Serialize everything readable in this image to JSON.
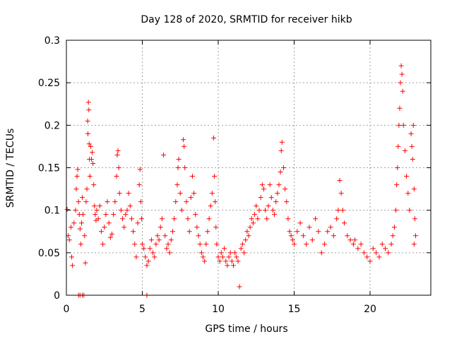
{
  "chart_data": {
    "type": "scatter",
    "title": "Day 128 of 2020, SRMTID for receiver hikb",
    "xlabel": "GPS time / hours",
    "ylabel": "SRMTID / TECUs",
    "xlim": [
      0,
      24
    ],
    "ylim": [
      0,
      0.3
    ],
    "xticks": [
      0,
      5,
      10,
      15,
      20
    ],
    "xtick_labels": [
      "0",
      "5",
      "10",
      "15",
      "20"
    ],
    "yticks": [
      0,
      0.05,
      0.1,
      0.15,
      0.2,
      0.25,
      0.3
    ],
    "ytick_labels": [
      "0",
      "0.05",
      "0.1",
      "0.15",
      "0.2",
      "0.25",
      "0.3"
    ],
    "grid": true,
    "marker": "plus",
    "series": [
      {
        "name": "SRMTID",
        "color": "#ff0000",
        "points": [
          [
            0.05,
            0.101
          ],
          [
            0.12,
            0.07
          ],
          [
            0.2,
            0.065
          ],
          [
            0.3,
            0.08
          ],
          [
            0.35,
            0.045
          ],
          [
            0.4,
            0.035
          ],
          [
            0.5,
            0.085
          ],
          [
            0.6,
            0.1
          ],
          [
            0.65,
            0.125
          ],
          [
            0.7,
            0.14
          ],
          [
            0.75,
            0.148
          ],
          [
            0.8,
            0.11
          ],
          [
            0.85,
            0.095
          ],
          [
            0.9,
            0.078
          ],
          [
            0.95,
            0.06
          ],
          [
            0.8,
            0.0
          ],
          [
            0.9,
            0.0
          ],
          [
            1.05,
            0.0
          ],
          [
            1.15,
            0.0
          ],
          [
            1.0,
            0.085
          ],
          [
            1.05,
            0.115
          ],
          [
            1.1,
            0.095
          ],
          [
            1.2,
            0.07
          ],
          [
            1.25,
            0.038
          ],
          [
            1.3,
            0.11
          ],
          [
            1.35,
            0.125
          ],
          [
            1.4,
            0.205
          ],
          [
            1.42,
            0.19
          ],
          [
            1.45,
            0.227
          ],
          [
            1.48,
            0.218
          ],
          [
            1.5,
            0.178
          ],
          [
            1.52,
            0.16
          ],
          [
            1.55,
            0.14
          ],
          [
            1.6,
            0.175
          ],
          [
            1.65,
            0.16
          ],
          [
            1.7,
            0.168
          ],
          [
            1.75,
            0.155
          ],
          [
            1.8,
            0.13
          ],
          [
            1.85,
            0.105
          ],
          [
            1.9,
            0.095
          ],
          [
            1.95,
            0.088
          ],
          [
            2.0,
            0.1
          ],
          [
            2.1,
            0.09
          ],
          [
            2.2,
            0.105
          ],
          [
            2.3,
            0.075
          ],
          [
            2.4,
            0.06
          ],
          [
            2.5,
            0.08
          ],
          [
            2.6,
            0.095
          ],
          [
            2.7,
            0.11
          ],
          [
            2.8,
            0.085
          ],
          [
            2.9,
            0.068
          ],
          [
            3.0,
            0.072
          ],
          [
            3.1,
            0.095
          ],
          [
            3.2,
            0.11
          ],
          [
            3.3,
            0.14
          ],
          [
            3.35,
            0.165
          ],
          [
            3.4,
            0.17
          ],
          [
            3.45,
            0.15
          ],
          [
            3.5,
            0.12
          ],
          [
            3.6,
            0.1
          ],
          [
            3.7,
            0.09
          ],
          [
            3.8,
            0.08
          ],
          [
            3.9,
            0.095
          ],
          [
            4.0,
            0.1
          ],
          [
            4.1,
            0.12
          ],
          [
            4.2,
            0.105
          ],
          [
            4.3,
            0.09
          ],
          [
            4.4,
            0.075
          ],
          [
            4.5,
            0.06
          ],
          [
            4.6,
            0.045
          ],
          [
            4.7,
            0.085
          ],
          [
            4.8,
            0.13
          ],
          [
            4.85,
            0.148
          ],
          [
            4.9,
            0.11
          ],
          [
            4.95,
            0.09
          ],
          [
            5.0,
            0.06
          ],
          [
            5.1,
            0.055
          ],
          [
            5.2,
            0.045
          ],
          [
            5.3,
            0.035
          ],
          [
            5.3,
            0.0
          ],
          [
            5.4,
            0.04
          ],
          [
            5.5,
            0.055
          ],
          [
            5.6,
            0.065
          ],
          [
            5.7,
            0.05
          ],
          [
            5.8,
            0.045
          ],
          [
            5.9,
            0.06
          ],
          [
            6.0,
            0.07
          ],
          [
            6.1,
            0.065
          ],
          [
            6.2,
            0.08
          ],
          [
            6.3,
            0.09
          ],
          [
            6.4,
            0.165
          ],
          [
            6.5,
            0.07
          ],
          [
            6.6,
            0.055
          ],
          [
            6.7,
            0.06
          ],
          [
            6.8,
            0.05
          ],
          [
            6.9,
            0.065
          ],
          [
            7.0,
            0.075
          ],
          [
            7.1,
            0.09
          ],
          [
            7.2,
            0.11
          ],
          [
            7.3,
            0.13
          ],
          [
            7.35,
            0.15
          ],
          [
            7.4,
            0.16
          ],
          [
            7.5,
            0.12
          ],
          [
            7.6,
            0.1
          ],
          [
            7.7,
            0.183
          ],
          [
            7.75,
            0.175
          ],
          [
            7.8,
            0.15
          ],
          [
            7.9,
            0.11
          ],
          [
            8.0,
            0.09
          ],
          [
            8.1,
            0.075
          ],
          [
            8.2,
            0.115
          ],
          [
            8.3,
            0.14
          ],
          [
            8.4,
            0.12
          ],
          [
            8.5,
            0.095
          ],
          [
            8.6,
            0.08
          ],
          [
            8.7,
            0.07
          ],
          [
            8.8,
            0.06
          ],
          [
            8.9,
            0.05
          ],
          [
            9.0,
            0.045
          ],
          [
            9.1,
            0.04
          ],
          [
            9.2,
            0.06
          ],
          [
            9.3,
            0.075
          ],
          [
            9.4,
            0.09
          ],
          [
            9.5,
            0.105
          ],
          [
            9.6,
            0.12
          ],
          [
            9.7,
            0.185
          ],
          [
            9.75,
            0.14
          ],
          [
            9.8,
            0.11
          ],
          [
            9.85,
            0.08
          ],
          [
            9.9,
            0.06
          ],
          [
            10.0,
            0.045
          ],
          [
            10.1,
            0.04
          ],
          [
            10.2,
            0.05
          ],
          [
            10.3,
            0.045
          ],
          [
            10.4,
            0.055
          ],
          [
            10.5,
            0.04
          ],
          [
            10.6,
            0.035
          ],
          [
            10.7,
            0.045
          ],
          [
            10.8,
            0.05
          ],
          [
            10.9,
            0.04
          ],
          [
            11.0,
            0.035
          ],
          [
            11.1,
            0.05
          ],
          [
            11.2,
            0.045
          ],
          [
            11.3,
            0.04
          ],
          [
            11.4,
            0.01
          ],
          [
            11.5,
            0.055
          ],
          [
            11.6,
            0.06
          ],
          [
            11.7,
            0.05
          ],
          [
            11.8,
            0.065
          ],
          [
            11.9,
            0.075
          ],
          [
            12.0,
            0.07
          ],
          [
            12.1,
            0.08
          ],
          [
            12.2,
            0.09
          ],
          [
            12.3,
            0.085
          ],
          [
            12.4,
            0.095
          ],
          [
            12.5,
            0.105
          ],
          [
            12.6,
            0.09
          ],
          [
            12.7,
            0.1
          ],
          [
            12.8,
            0.115
          ],
          [
            12.9,
            0.13
          ],
          [
            13.0,
            0.125
          ],
          [
            13.1,
            0.1
          ],
          [
            13.2,
            0.09
          ],
          [
            13.3,
            0.105
          ],
          [
            13.4,
            0.13
          ],
          [
            13.5,
            0.115
          ],
          [
            13.6,
            0.1
          ],
          [
            13.7,
            0.095
          ],
          [
            13.8,
            0.11
          ],
          [
            13.9,
            0.12
          ],
          [
            14.0,
            0.13
          ],
          [
            14.1,
            0.145
          ],
          [
            14.15,
            0.17
          ],
          [
            14.2,
            0.18
          ],
          [
            14.3,
            0.15
          ],
          [
            14.4,
            0.125
          ],
          [
            14.5,
            0.11
          ],
          [
            14.6,
            0.09
          ],
          [
            14.7,
            0.075
          ],
          [
            14.8,
            0.07
          ],
          [
            14.9,
            0.065
          ],
          [
            15.0,
            0.06
          ],
          [
            15.2,
            0.075
          ],
          [
            15.4,
            0.085
          ],
          [
            15.6,
            0.07
          ],
          [
            15.8,
            0.06
          ],
          [
            16.0,
            0.08
          ],
          [
            16.2,
            0.065
          ],
          [
            16.4,
            0.09
          ],
          [
            16.6,
            0.075
          ],
          [
            16.8,
            0.05
          ],
          [
            17.0,
            0.06
          ],
          [
            17.2,
            0.075
          ],
          [
            17.4,
            0.08
          ],
          [
            17.6,
            0.07
          ],
          [
            17.8,
            0.09
          ],
          [
            17.9,
            0.1
          ],
          [
            18.0,
            0.135
          ],
          [
            18.1,
            0.12
          ],
          [
            18.2,
            0.1
          ],
          [
            18.3,
            0.085
          ],
          [
            18.5,
            0.07
          ],
          [
            18.7,
            0.065
          ],
          [
            18.9,
            0.06
          ],
          [
            19.0,
            0.065
          ],
          [
            19.2,
            0.055
          ],
          [
            19.4,
            0.06
          ],
          [
            19.6,
            0.05
          ],
          [
            19.8,
            0.045
          ],
          [
            20.0,
            0.04
          ],
          [
            20.2,
            0.055
          ],
          [
            20.4,
            0.05
          ],
          [
            20.6,
            0.045
          ],
          [
            20.8,
            0.06
          ],
          [
            21.0,
            0.055
          ],
          [
            21.2,
            0.05
          ],
          [
            21.4,
            0.06
          ],
          [
            21.5,
            0.07
          ],
          [
            21.6,
            0.08
          ],
          [
            21.7,
            0.1
          ],
          [
            21.75,
            0.13
          ],
          [
            21.8,
            0.15
          ],
          [
            21.85,
            0.175
          ],
          [
            21.9,
            0.2
          ],
          [
            21.95,
            0.22
          ],
          [
            22.0,
            0.25
          ],
          [
            22.05,
            0.27
          ],
          [
            22.1,
            0.26
          ],
          [
            22.15,
            0.24
          ],
          [
            22.2,
            0.2
          ],
          [
            22.3,
            0.17
          ],
          [
            22.4,
            0.14
          ],
          [
            22.5,
            0.12
          ],
          [
            22.6,
            0.1
          ],
          [
            22.7,
            0.19
          ],
          [
            22.75,
            0.175
          ],
          [
            22.8,
            0.16
          ],
          [
            22.85,
            0.2
          ],
          [
            22.9,
            0.125
          ],
          [
            22.95,
            0.09
          ],
          [
            23.0,
            0.07
          ],
          [
            22.9,
            0.06
          ]
        ]
      }
    ]
  }
}
